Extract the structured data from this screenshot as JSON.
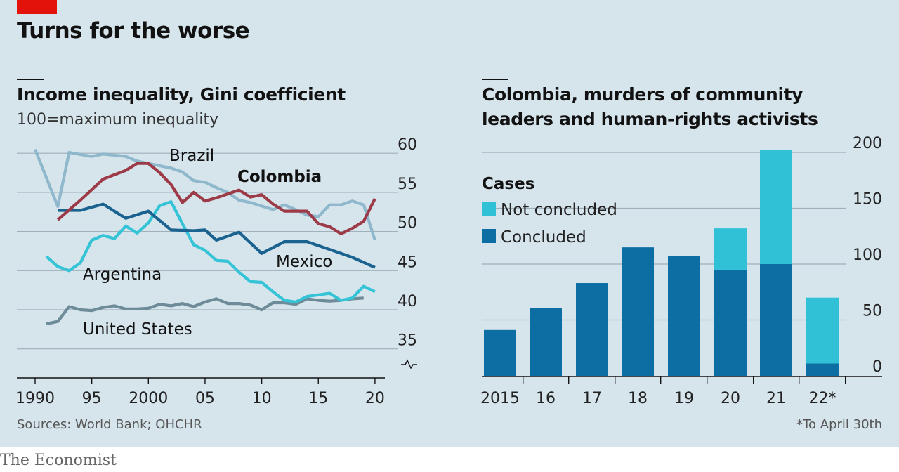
{
  "title": "Turns for the worse",
  "brand": "The Economist",
  "source": "Sources: World Bank; OHCHR",
  "footnote": "*To April 30th",
  "colors": {
    "brazil": "#8fb8cc",
    "colombia": "#9d3a48",
    "mexico": "#1a628f",
    "argentina": "#35c3d6",
    "united_states": "#6d8b98",
    "not_concluded": "#30c1d6",
    "concluded": "#0d6ea3"
  },
  "chart_data": [
    {
      "type": "line",
      "title": "Income inequality, Gini coefficient",
      "subtitle": "100=maximum inequality",
      "ylim": [
        33,
        60
      ],
      "yticks": [
        35,
        40,
        45,
        50,
        55,
        60
      ],
      "xlim": [
        1989,
        2020
      ],
      "xticks": [
        {
          "value": 1990,
          "label": "1990"
        },
        {
          "value": 1995,
          "label": "95"
        },
        {
          "value": 2000,
          "label": "2000"
        },
        {
          "value": 2005,
          "label": "05"
        },
        {
          "value": 2010,
          "label": "10"
        },
        {
          "value": 2015,
          "label": "15"
        },
        {
          "value": 2020,
          "label": "20"
        }
      ],
      "axis_break": true,
      "grid": true,
      "series": [
        {
          "key": "brazil",
          "name": "Brazil",
          "points": [
            [
              1990,
              60.5
            ],
            [
              1992,
              53.2
            ],
            [
              1993,
              60.1
            ],
            [
              1995,
              59.6
            ],
            [
              1996,
              59.9
            ],
            [
              1998,
              59.6
            ],
            [
              1999,
              59.0
            ],
            [
              2001,
              58.4
            ],
            [
              2002,
              58.1
            ],
            [
              2003,
              57.6
            ],
            [
              2004,
              56.5
            ],
            [
              2005,
              56.3
            ],
            [
              2006,
              55.6
            ],
            [
              2007,
              55.0
            ],
            [
              2008,
              54.0
            ],
            [
              2009,
              53.7
            ],
            [
              2011,
              52.8
            ],
            [
              2012,
              53.4
            ],
            [
              2013,
              52.8
            ],
            [
              2014,
              52.1
            ],
            [
              2015,
              51.9
            ],
            [
              2016,
              53.4
            ],
            [
              2017,
              53.4
            ],
            [
              2018,
              53.9
            ],
            [
              2019,
              53.4
            ],
            [
              2020,
              48.9
            ]
          ]
        },
        {
          "key": "colombia",
          "name": "Colombia",
          "points": [
            [
              1992,
              51.5
            ],
            [
              1994,
              54.0
            ],
            [
              1996,
              56.7
            ],
            [
              1998,
              57.8
            ],
            [
              1999,
              58.7
            ],
            [
              2000,
              58.7
            ],
            [
              2001,
              57.5
            ],
            [
              2002,
              56.0
            ],
            [
              2003,
              53.7
            ],
            [
              2004,
              55.0
            ],
            [
              2005,
              53.9
            ],
            [
              2006,
              54.3
            ],
            [
              2007,
              54.8
            ],
            [
              2008,
              55.3
            ],
            [
              2009,
              54.4
            ],
            [
              2010,
              54.7
            ],
            [
              2011,
              53.5
            ],
            [
              2012,
              52.6
            ],
            [
              2013,
              52.6
            ],
            [
              2014,
              52.6
            ],
            [
              2015,
              51.0
            ],
            [
              2016,
              50.6
            ],
            [
              2017,
              49.7
            ],
            [
              2018,
              50.4
            ],
            [
              2019,
              51.3
            ],
            [
              2020,
              54.2
            ]
          ]
        },
        {
          "key": "mexico",
          "name": "Mexico",
          "points": [
            [
              1992,
              52.7
            ],
            [
              1994,
              52.7
            ],
            [
              1996,
              53.5
            ],
            [
              1998,
              51.7
            ],
            [
              2000,
              52.6
            ],
            [
              2002,
              50.2
            ],
            [
              2004,
              50.1
            ],
            [
              2005,
              50.2
            ],
            [
              2006,
              48.9
            ],
            [
              2008,
              49.9
            ],
            [
              2010,
              47.2
            ],
            [
              2012,
              48.7
            ],
            [
              2014,
              48.7
            ],
            [
              2016,
              47.7
            ],
            [
              2018,
              46.7
            ],
            [
              2020,
              45.4
            ]
          ]
        },
        {
          "key": "argentina",
          "name": "Argentina",
          "points": [
            [
              1991,
              46.8
            ],
            [
              1992,
              45.5
            ],
            [
              1993,
              45.0
            ],
            [
              1994,
              46.0
            ],
            [
              1995,
              48.9
            ],
            [
              1996,
              49.5
            ],
            [
              1997,
              49.1
            ],
            [
              1998,
              50.7
            ],
            [
              1999,
              49.8
            ],
            [
              2000,
              51.1
            ],
            [
              2001,
              53.3
            ],
            [
              2002,
              53.8
            ],
            [
              2003,
              51.0
            ],
            [
              2004,
              48.3
            ],
            [
              2005,
              47.6
            ],
            [
              2006,
              46.3
            ],
            [
              2007,
              46.2
            ],
            [
              2008,
              44.8
            ],
            [
              2009,
              43.6
            ],
            [
              2010,
              43.5
            ],
            [
              2011,
              42.3
            ],
            [
              2012,
              41.2
            ],
            [
              2013,
              41.0
            ],
            [
              2014,
              41.7
            ],
            [
              2015,
              41.9
            ],
            [
              2016,
              42.1
            ],
            [
              2017,
              41.2
            ],
            [
              2018,
              41.5
            ],
            [
              2019,
              43.0
            ],
            [
              2020,
              42.3
            ]
          ]
        },
        {
          "key": "united_states",
          "name": "United States",
          "points": [
            [
              1991,
              38.2
            ],
            [
              1992,
              38.5
            ],
            [
              1993,
              40.4
            ],
            [
              1994,
              40.0
            ],
            [
              1995,
              39.9
            ],
            [
              1996,
              40.3
            ],
            [
              1997,
              40.5
            ],
            [
              1998,
              40.1
            ],
            [
              1999,
              40.1
            ],
            [
              2000,
              40.2
            ],
            [
              2001,
              40.7
            ],
            [
              2002,
              40.5
            ],
            [
              2003,
              40.8
            ],
            [
              2004,
              40.4
            ],
            [
              2005,
              41.0
            ],
            [
              2006,
              41.4
            ],
            [
              2007,
              40.8
            ],
            [
              2008,
              40.8
            ],
            [
              2009,
              40.6
            ],
            [
              2010,
              40.0
            ],
            [
              2011,
              40.9
            ],
            [
              2012,
              40.9
            ],
            [
              2013,
              40.7
            ],
            [
              2014,
              41.4
            ],
            [
              2015,
              41.2
            ],
            [
              2016,
              41.1
            ],
            [
              2017,
              41.2
            ],
            [
              2018,
              41.4
            ],
            [
              2019,
              41.5
            ]
          ]
        }
      ],
      "labels": {
        "brazil": "Brazil",
        "colombia": "Colombia",
        "mexico": "Mexico",
        "argentina": "Argentina",
        "united_states": "United States"
      }
    },
    {
      "type": "bar",
      "stacked": true,
      "title": "Colombia, murders of community leaders and human-rights activists",
      "title_lines": [
        "Colombia, murders of community",
        "leaders and human-rights activists"
      ],
      "legend_title": "Cases",
      "legend_position": "top-left",
      "ylim": [
        0,
        200
      ],
      "yticks": [
        0,
        50,
        100,
        150,
        200
      ],
      "categories": [
        "2015",
        "16",
        "17",
        "18",
        "19",
        "20",
        "21",
        "22*"
      ],
      "grid": true,
      "series": [
        {
          "key": "concluded",
          "name": "Concluded",
          "values": [
            41,
            61,
            83,
            115,
            107,
            95,
            100,
            11
          ]
        },
        {
          "key": "not_concluded",
          "name": "Not concluded",
          "values": [
            0,
            0,
            0,
            0,
            0,
            37,
            102,
            59
          ]
        }
      ]
    }
  ]
}
